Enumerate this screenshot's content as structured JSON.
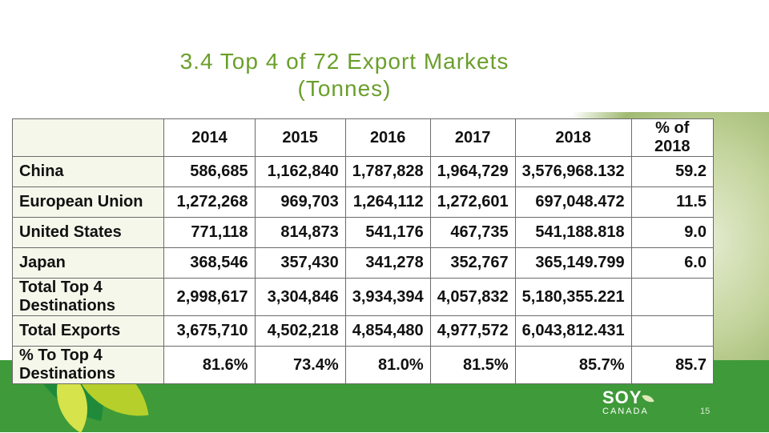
{
  "slide": {
    "title_line1": "3.4  Top 4 of 72 Export Markets",
    "title_line2": "(Tonnes)",
    "page_number": "15"
  },
  "table": {
    "headers": [
      "",
      "2014",
      "2015",
      "2016",
      "2017",
      "2018",
      "% of 2018"
    ],
    "rows": [
      {
        "label": "China",
        "values": [
          "586,685",
          "1,162,840",
          "1,787,828",
          "1,964,729",
          "3,576,968.132",
          "59.2"
        ]
      },
      {
        "label": "European Union",
        "values": [
          "1,272,268",
          "969,703",
          "1,264,112",
          "1,272,601",
          "697,048.472",
          "11.5"
        ]
      },
      {
        "label": "United States",
        "values": [
          "771,118",
          "814,873",
          "541,176",
          "467,735",
          "541,188.818",
          "9.0"
        ]
      },
      {
        "label": "Japan",
        "values": [
          "368,546",
          "357,430",
          "341,278",
          "352,767",
          "365,149.799",
          "6.0"
        ]
      },
      {
        "label": "Total Top 4 Destinations",
        "values": [
          "2,998,617",
          "3,304,846",
          "3,934,394",
          "4,057,832",
          "5,180,355.221",
          ""
        ]
      },
      {
        "label": "Total Exports",
        "values": [
          "3,675,710",
          "4,502,218",
          "4,854,480",
          "4,977,572",
          "6,043,812.431",
          ""
        ]
      },
      {
        "label": "% To Top 4 Destinations",
        "values": [
          "81.6%",
          "73.4%",
          "81.0%",
          "81.5%",
          "85.7%",
          "85.7"
        ]
      }
    ]
  },
  "logo": {
    "word1": "SOY",
    "word2": "CANADA",
    "icon": "leaf-icon"
  },
  "colors": {
    "title": "#6a9f2a",
    "footer": "#3f9a3a"
  }
}
